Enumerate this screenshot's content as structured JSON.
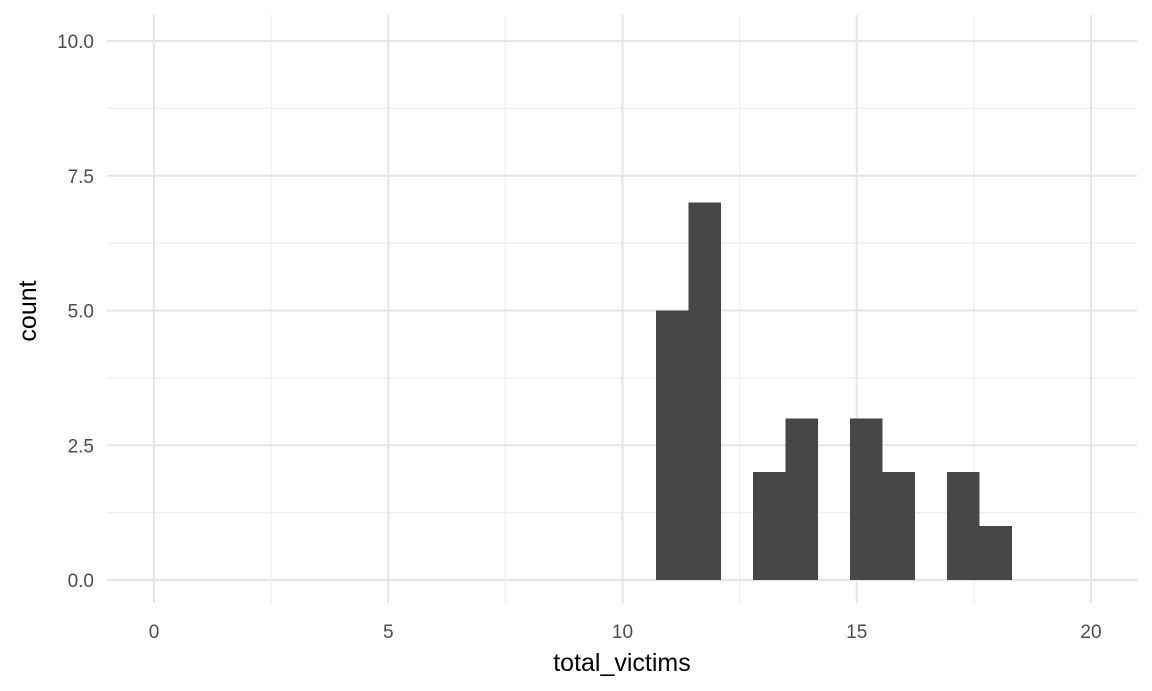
{
  "chart_data": {
    "type": "bar",
    "subtype": "histogram",
    "title": "",
    "xlabel": "total_victims",
    "ylabel": "count",
    "xlim": [
      0,
      20
    ],
    "ylim": [
      0,
      10
    ],
    "x_ticks": [
      0,
      5,
      10,
      15,
      20
    ],
    "x_tick_labels": [
      "0",
      "5",
      "10",
      "15",
      "20"
    ],
    "y_ticks": [
      0,
      2.5,
      5,
      7.5,
      10
    ],
    "y_tick_labels": [
      "0.0",
      "2.5",
      "5.0",
      "7.5",
      "10.0"
    ],
    "grid": true,
    "bar_color": "#474747",
    "bins": [
      {
        "x_start": 10.72,
        "x_end": 11.41,
        "count": 5
      },
      {
        "x_start": 11.41,
        "x_end": 12.1,
        "count": 7
      },
      {
        "x_start": 12.79,
        "x_end": 13.48,
        "count": 2
      },
      {
        "x_start": 13.48,
        "x_end": 14.17,
        "count": 3
      },
      {
        "x_start": 14.86,
        "x_end": 15.55,
        "count": 3
      },
      {
        "x_start": 15.55,
        "x_end": 16.24,
        "count": 2
      },
      {
        "x_start": 16.93,
        "x_end": 17.62,
        "count": 2
      },
      {
        "x_start": 17.62,
        "x_end": 18.31,
        "count": 1
      }
    ]
  }
}
